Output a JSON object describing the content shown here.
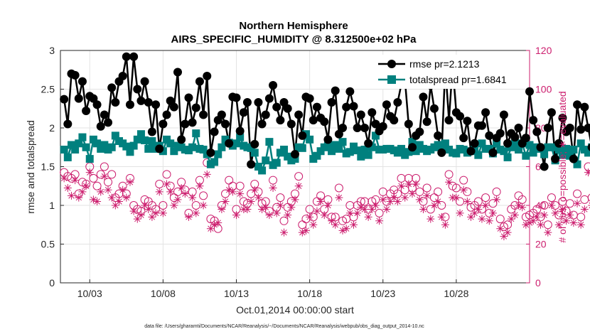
{
  "chart_data": {
    "type": "line",
    "title": "Northern Hemisphere",
    "subtitle": "AIRS_SPECIFIC_HUMIDITY @ 8.312500e+02 hPa",
    "xlabel": "Oct.01,2014 00:00:00 start",
    "ylabel": "rmse and totalspread",
    "ylabel_right": "# of obs: o=possible; ∗=evaluated",
    "footnote": "data file: /Users/gharamti/Documents/NCAR/Reanalysis/~/Documents/NCAR/Reanalysis/webpub/obs_diag_output_2014-10.nc",
    "xlim": [
      1,
      33
    ],
    "ylim": [
      0,
      3
    ],
    "ylim_right": [
      0,
      120
    ],
    "xticks": [
      {
        "x": 3,
        "label": "10/03"
      },
      {
        "x": 8,
        "label": "10/08"
      },
      {
        "x": 13,
        "label": "10/13"
      },
      {
        "x": 18,
        "label": "10/18"
      },
      {
        "x": 23,
        "label": "10/23"
      },
      {
        "x": 28,
        "label": "10/28"
      }
    ],
    "yticks": [
      {
        "v": 0,
        "label": "0"
      },
      {
        "v": 0.5,
        "label": "0.5"
      },
      {
        "v": 1,
        "label": "1"
      },
      {
        "v": 1.5,
        "label": "1.5"
      },
      {
        "v": 2,
        "label": "2"
      },
      {
        "v": 2.5,
        "label": "2.5"
      },
      {
        "v": 3,
        "label": "3"
      }
    ],
    "yticks_right": [
      {
        "v": 0,
        "label": "0"
      },
      {
        "v": 20,
        "label": "20"
      },
      {
        "v": 40,
        "label": "40"
      },
      {
        "v": 60,
        "label": "60"
      },
      {
        "v": 80,
        "label": "80"
      },
      {
        "v": 100,
        "label": "100"
      },
      {
        "v": 120,
        "label": "120"
      }
    ],
    "grid": true,
    "legend": "top-right",
    "colors": {
      "rmse": "#000000",
      "spread": "#00807e",
      "obs": "#cc1e6e",
      "grid": "#e3e3e3"
    },
    "series": [
      {
        "name": "rmse pr=2.1213",
        "axis": "left",
        "marker": "filled-circle",
        "values": [
          2.37,
          2.05,
          2.7,
          2.68,
          2.38,
          2.6,
          2.22,
          2.41,
          2.38,
          2.3,
          2.02,
          2.17,
          2.07,
          2.52,
          2.33,
          2.6,
          2.67,
          2.92,
          2.3,
          2.92,
          2.5,
          2.35,
          2.6,
          2.33,
          1.95,
          2.3,
          1.73,
          2.05,
          2.17,
          2.35,
          2.27,
          2.72,
          1.85,
          2.05,
          2.39,
          2.07,
          2.26,
          2.6,
          2.17,
          2.67,
          1.68,
          1.95,
          2.1,
          2.17,
          2.05,
          1.8,
          2.4,
          2.39,
          1.96,
          2.2,
          2.33,
          1.53,
          1.79,
          2.33,
          2.05,
          2.17,
          2.38,
          2.55,
          2.27,
          2.1,
          2.33,
          2.25,
          2.05,
          1.66,
          2.17,
          1.9,
          2.4,
          2.38,
          2.1,
          2.27,
          2.13,
          2.08,
          1.85,
          2.33,
          2.48,
          1.92,
          2.0,
          2.27,
          2.47,
          2.28,
          2.0,
          2.17,
          2.0,
          1.8,
          2.2,
          2.05,
          1.96,
          2.02,
          2.3,
          2.15,
          2.1,
          2.33,
          2.56,
          2.62,
          2.05,
          1.75,
          1.9,
          1.95,
          2.4,
          2.08,
          2.55,
          2.25,
          1.9,
          1.68,
          2.79,
          2.1,
          2.8,
          2.2,
          2.15,
          1.87,
          2.09,
          1.7,
          1.8,
          2.03,
          2.03,
          2.2,
          1.9,
          1.68,
          1.87,
          1.93,
          2.17,
          1.8,
          1.93,
          1.88,
          2.0,
          1.8,
          1.87,
          2.47,
          2.1,
          1.95,
          1.75,
          1.5,
          2.0,
          2.2,
          1.6,
          1.8,
          2.13,
          1.95,
          2.0,
          1.6,
          2.3,
          1.98,
          2.27,
          2.0,
          1.75,
          1.7,
          2.0,
          1.8,
          1.8,
          1.9,
          1.68,
          1.9,
          1.7,
          1.6,
          1.8,
          1.65,
          1.5,
          1.65,
          1.95,
          1.47,
          2.03,
          1.7,
          1.75,
          1.9,
          1.7,
          1.7,
          2.33,
          2.05,
          1.75,
          1.6,
          1.75,
          1.75,
          1.55,
          1.7,
          2.1,
          2.05,
          2.02,
          1.7
        ]
      },
      {
        "name": "totalspread pr=1.6841",
        "axis": "left",
        "marker": "filled-square",
        "values": [
          1.72,
          1.62,
          1.78,
          1.72,
          1.8,
          1.88,
          1.75,
          1.6,
          1.85,
          1.8,
          1.73,
          1.78,
          1.72,
          1.75,
          1.9,
          1.83,
          1.8,
          1.76,
          1.69,
          1.77,
          1.85,
          1.92,
          1.84,
          1.73,
          1.83,
          1.73,
          1.77,
          1.7,
          1.85,
          1.8,
          1.7,
          1.77,
          1.75,
          1.72,
          1.71,
          1.75,
          1.93,
          1.73,
          1.72,
          1.66,
          1.53,
          1.56,
          1.66,
          1.75,
          1.85,
          1.81,
          1.77,
          1.8,
          1.88,
          1.77,
          1.75,
          1.74,
          1.68,
          1.5,
          1.45,
          1.58,
          1.82,
          1.52,
          1.55,
          1.68,
          1.72,
          1.63,
          1.58,
          1.6,
          1.75,
          1.74,
          1.92,
          1.85,
          1.6,
          1.64,
          1.7,
          1.75,
          1.77,
          1.7,
          1.78,
          1.73,
          1.82,
          1.67,
          1.69,
          1.76,
          1.71,
          1.63,
          1.72,
          1.65,
          1.75,
          1.9,
          1.72,
          1.72,
          1.73,
          1.73,
          1.71,
          1.68,
          1.73,
          1.65,
          1.69,
          1.82,
          1.7,
          1.78,
          1.73,
          1.7,
          1.72,
          1.75,
          1.78,
          1.72,
          1.8,
          1.72,
          1.68,
          1.67,
          1.73,
          1.72,
          1.68,
          1.7,
          1.73,
          1.65,
          1.8,
          1.73,
          1.73,
          1.67,
          1.8,
          1.72,
          1.7,
          1.62,
          1.75,
          1.8,
          1.72,
          1.8,
          1.64,
          1.78,
          1.68,
          1.75,
          1.73,
          1.66,
          1.75,
          1.75,
          1.58,
          1.72,
          1.65,
          1.73,
          1.64,
          1.72,
          1.53,
          1.8,
          1.72,
          1.68,
          1.75,
          1.73,
          1.7,
          1.75,
          1.68,
          1.75,
          1.73,
          1.7,
          1.82,
          1.58,
          1.58,
          1.65,
          1.72,
          1.55,
          1.82,
          1.6,
          1.65,
          1.66,
          1.62,
          1.72,
          1.66,
          1.75,
          1.62,
          1.75,
          1.73,
          1.42,
          1.6,
          1.67,
          1.72,
          1.65,
          1.8,
          1.67,
          1.64,
          1.7,
          1.68,
          1.73
        ]
      },
      {
        "name": "possible",
        "axis": "right",
        "marker": "open-circle",
        "values": [
          57,
          55,
          54,
          56,
          46,
          52,
          51,
          60,
          54,
          50,
          56,
          60,
          52,
          56,
          44,
          46,
          50,
          46,
          54,
          40,
          38,
          37,
          43,
          42,
          40,
          38,
          51,
          40,
          56,
          50,
          44,
          47,
          52,
          48,
          36,
          47,
          40,
          53,
          45,
          62,
          33,
          32,
          28,
          40,
          46,
          53,
          50,
          38,
          50,
          42,
          41,
          46,
          51,
          47,
          41,
          42,
          37,
          53,
          39,
          44,
          32,
          39,
          42,
          46,
          55,
          30,
          33,
          38,
          34,
          42,
          45,
          38,
          43,
          34,
          34,
          49,
          32,
          33,
          40,
          34,
          40,
          42,
          42,
          38,
          42,
          43,
          36,
          47,
          42,
          46,
          48,
          46,
          54,
          48,
          54,
          49,
          54,
          47,
          42,
          49,
          38,
          44,
          47,
          40,
          34,
          56,
          50,
          49,
          42,
          53,
          47,
          39,
          40,
          42,
          38,
          44,
          36,
          41,
          47,
          33,
          29,
          30,
          38,
          40,
          45,
          43,
          34,
          35,
          36,
          38,
          34,
          40,
          30,
          44,
          40,
          35,
          42,
          37,
          41,
          35,
          46,
          34,
          43,
          60,
          44,
          44,
          46,
          45,
          40,
          38,
          43,
          35,
          37,
          41,
          42,
          44,
          38,
          46,
          42,
          35,
          42,
          40,
          36,
          36,
          39,
          43,
          42,
          40,
          35,
          40,
          38,
          36,
          30,
          44,
          42,
          36,
          34,
          38,
          39,
          37,
          40,
          45
        ]
      },
      {
        "name": "evaluated",
        "axis": "right",
        "marker": "asterisk",
        "values": [
          54,
          49,
          45,
          53,
          44,
          47,
          50,
          57,
          43,
          42,
          47,
          55,
          48,
          44,
          40,
          42,
          48,
          44,
          52,
          37,
          33,
          35,
          40,
          38,
          34,
          36,
          47,
          36,
          51,
          47,
          40,
          43,
          49,
          46,
          34,
          44,
          36,
          50,
          40,
          56,
          28,
          30,
          31,
          38,
          42,
          48,
          47,
          35,
          46,
          38,
          38,
          42,
          48,
          44,
          38,
          39,
          35,
          49,
          36,
          40,
          26,
          35,
          39,
          43,
          50,
          26,
          27,
          34,
          30,
          37,
          42,
          35,
          40,
          32,
          30,
          44,
          27,
          28,
          36,
          30,
          36,
          39,
          38,
          34,
          38,
          40,
          32,
          43,
          38,
          42,
          44,
          42,
          50,
          44,
          51,
          46,
          51,
          43,
          38,
          45,
          33,
          40,
          42,
          34,
          30,
          52,
          44,
          44,
          36,
          48,
          42,
          34,
          36,
          38,
          33,
          40,
          32,
          36,
          43,
          28,
          24,
          26,
          33,
          35,
          40,
          39,
          30,
          31,
          32,
          34,
          30,
          35,
          26,
          40,
          36,
          30,
          38,
          32,
          35,
          31,
          41,
          30,
          38,
          57,
          40,
          39,
          42,
          40,
          36,
          34,
          37,
          31,
          33,
          36,
          38,
          40,
          34,
          42,
          38,
          31,
          37,
          36,
          32,
          32,
          34,
          38,
          37,
          35,
          30,
          35,
          34,
          32,
          27,
          40,
          37,
          32,
          30,
          33,
          34,
          33,
          35,
          0
        ]
      }
    ]
  }
}
